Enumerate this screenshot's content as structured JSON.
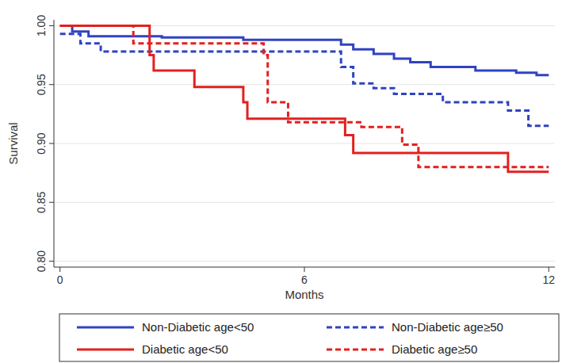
{
  "chart_data": {
    "type": "line",
    "x_label": "Months",
    "y_label": "Survival",
    "xlim": [
      -0.15,
      12.15
    ],
    "xticks": [
      0,
      6,
      12
    ],
    "ylim": [
      0.795,
      1.005
    ],
    "yticks": [
      {
        "value": 0.8,
        "label": "0.80"
      },
      0.85,
      {
        "value": 0.9,
        "label": "0.90"
      },
      0.95,
      {
        "value": 1,
        "label": "1.00"
      }
    ],
    "grid": true,
    "legend": "bottom",
    "series": [
      {
        "name": "Non-Diabetic age<50",
        "color": "#2f43c2",
        "line_style": "solid",
        "x": [
          0,
          0.3,
          0.3,
          0.7,
          0.7,
          2.5,
          2.5,
          4.5,
          4.5,
          6.9,
          6.9,
          7.2,
          7.2,
          7.7,
          7.7,
          8.2,
          8.2,
          8.6,
          8.6,
          9.1,
          9.1,
          10.2,
          10.2,
          11.2,
          11.2,
          11.7,
          11.7,
          12
        ],
        "values": [
          1,
          1,
          0.995,
          0.995,
          0.991,
          0.991,
          0.99,
          0.99,
          0.988,
          0.988,
          0.984,
          0.984,
          0.98,
          0.98,
          0.976,
          0.976,
          0.972,
          0.972,
          0.969,
          0.969,
          0.965,
          0.965,
          0.962,
          0.962,
          0.96,
          0.96,
          0.958,
          0.958
        ]
      },
      {
        "name": "Non-Diabetic age≥50",
        "color": "#2f43c2",
        "line_style": "dashed",
        "x": [
          0,
          0.5,
          0.5,
          1.0,
          1.0,
          6.9,
          6.9,
          7.2,
          7.2,
          7.7,
          7.7,
          8.2,
          8.2,
          9.4,
          9.4,
          11.0,
          11.0,
          11.5,
          11.5,
          12
        ],
        "values": [
          0.993,
          0.993,
          0.985,
          0.985,
          0.978,
          0.978,
          0.965,
          0.965,
          0.951,
          0.951,
          0.947,
          0.947,
          0.942,
          0.942,
          0.935,
          0.935,
          0.928,
          0.928,
          0.915,
          0.915
        ]
      },
      {
        "name": "Diabetic age<50",
        "color": "#e3201f",
        "line_style": "solid",
        "x": [
          0,
          2.2,
          2.2,
          2.3,
          2.3,
          3.3,
          3.3,
          4.5,
          4.5,
          4.6,
          4.6,
          7.0,
          7.0,
          7.2,
          7.2,
          11.0,
          11.0,
          12
        ],
        "values": [
          1,
          1,
          0.975,
          0.975,
          0.962,
          0.962,
          0.948,
          0.948,
          0.935,
          0.935,
          0.921,
          0.921,
          0.907,
          0.907,
          0.892,
          0.892,
          0.876,
          0.876
        ]
      },
      {
        "name": "Diabetic age≥50",
        "color": "#e3201f",
        "line_style": "dashed",
        "x": [
          0,
          1.8,
          1.8,
          5.0,
          5.0,
          5.1,
          5.1,
          5.6,
          5.6,
          7.4,
          7.4,
          8.4,
          8.4,
          8.8,
          8.8,
          12
        ],
        "values": [
          1,
          1,
          0.985,
          0.985,
          0.975,
          0.975,
          0.935,
          0.935,
          0.918,
          0.918,
          0.914,
          0.914,
          0.899,
          0.899,
          0.88,
          0.88
        ]
      }
    ]
  }
}
